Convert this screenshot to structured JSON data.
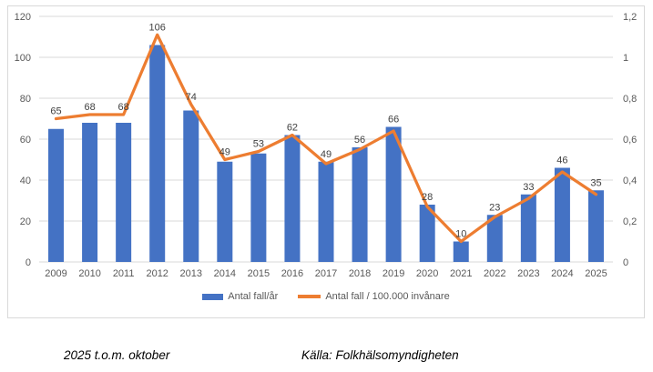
{
  "chart_data": {
    "type": "bar+line",
    "title": "",
    "categories": [
      "2009",
      "2010",
      "2011",
      "2012",
      "2013",
      "2014",
      "2015",
      "2016",
      "2017",
      "2018",
      "2019",
      "2020",
      "2021",
      "2022",
      "2023",
      "2024",
      "2025"
    ],
    "series": [
      {
        "name": "Antal fall/år",
        "type": "bar",
        "axis": "left",
        "color": "#4472C4",
        "data_labels": true,
        "values": [
          65,
          68,
          68,
          106,
          74,
          49,
          53,
          62,
          49,
          56,
          66,
          28,
          10,
          23,
          33,
          46,
          35
        ]
      },
      {
        "name": "Antal fall / 100.000 invånare",
        "type": "line",
        "axis": "right",
        "color": "#ED7D31",
        "data_labels": false,
        "values": [
          0.7,
          0.72,
          0.72,
          1.11,
          0.77,
          0.5,
          0.54,
          0.62,
          0.48,
          0.55,
          0.64,
          0.27,
          0.1,
          0.22,
          0.31,
          0.44,
          0.33
        ]
      }
    ],
    "left_axis": {
      "min": 0,
      "max": 120,
      "step": 20,
      "ticklabels": [
        "0",
        "20",
        "40",
        "60",
        "80",
        "100",
        "120"
      ]
    },
    "right_axis": {
      "min": 0,
      "max": 1.2,
      "step": 0.2,
      "ticklabels": [
        "0",
        "0,2",
        "0,4",
        "0,6",
        "0,8",
        "1",
        "1,2"
      ]
    },
    "grid": "horizontal",
    "legend_position": "bottom"
  },
  "legend": {
    "bar_label": "Antal fall/år",
    "line_label": "Antal fall / 100.000 invånare"
  },
  "footer": {
    "note": "2025 t.o.m. oktober",
    "source": "Källa: Folkhälsomyndigheten"
  },
  "colors": {
    "bar": "#4472C4",
    "line": "#ED7D31",
    "grid": "#D9D9D9",
    "border": "#D9D9D9",
    "axis_text": "#595959",
    "data_label_text": "#404040",
    "background": "#FFFFFF"
  }
}
